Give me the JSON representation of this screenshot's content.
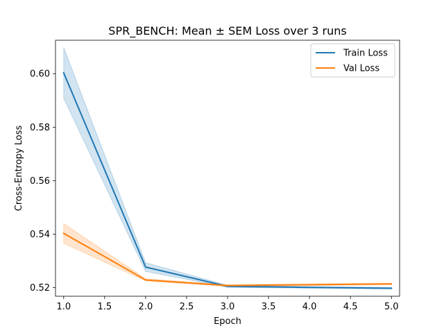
{
  "chart_data": {
    "type": "line",
    "title": "SPR_BENCH: Mean ± SEM Loss over 3 runs",
    "xlabel": "Epoch",
    "ylabel": "Cross-Entropy Loss",
    "xlim": [
      0.9,
      5.1
    ],
    "ylim": [
      0.5168,
      0.6125
    ],
    "xticks": [
      1.0,
      1.5,
      2.0,
      2.5,
      3.0,
      3.5,
      4.0,
      4.5,
      5.0
    ],
    "xtick_labels": [
      "1.0",
      "1.5",
      "2.0",
      "2.5",
      "3.0",
      "3.5",
      "4.0",
      "4.5",
      "5.0"
    ],
    "yticks": [
      0.52,
      0.54,
      0.56,
      0.58,
      0.6
    ],
    "ytick_labels": [
      "0.52",
      "0.54",
      "0.56",
      "0.58",
      "0.60"
    ],
    "grid": false,
    "legend_position": "top-right",
    "x": [
      1,
      2,
      3,
      4,
      5
    ],
    "series": [
      {
        "name": "Train Loss",
        "color": "#1f77b4",
        "values": [
          0.6003,
          0.5277,
          0.5205,
          0.5201,
          0.5198
        ],
        "lower": [
          0.5908,
          0.5261,
          0.5201,
          0.5198,
          0.5195
        ],
        "upper": [
          0.6098,
          0.5293,
          0.5209,
          0.5204,
          0.5201
        ]
      },
      {
        "name": "Val Loss",
        "color": "#ff7f0e",
        "values": [
          0.5403,
          0.5229,
          0.5208,
          0.5211,
          0.5214
        ],
        "lower": [
          0.5366,
          0.5225,
          0.5205,
          0.5208,
          0.5211
        ],
        "upper": [
          0.544,
          0.5233,
          0.5211,
          0.5214,
          0.5217
        ]
      }
    ]
  }
}
